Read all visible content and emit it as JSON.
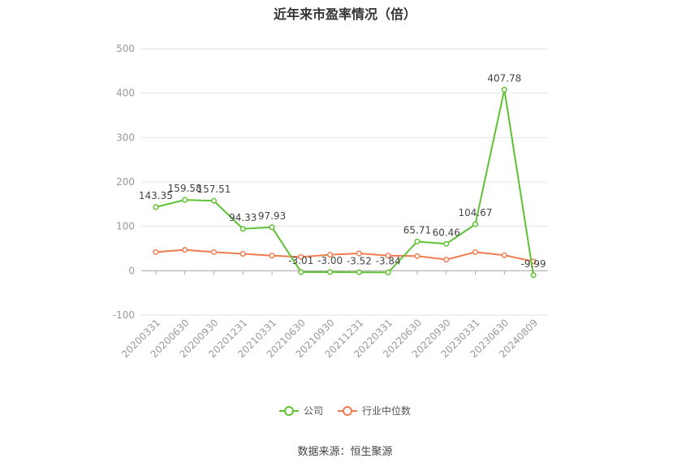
{
  "chart_data": {
    "type": "line",
    "title": "近年来市盈率情况（倍）",
    "categories": [
      "20200331",
      "20200630",
      "20200930",
      "20201231",
      "20210331",
      "20210630",
      "20210930",
      "20211231",
      "20220331",
      "20220630",
      "20220930",
      "20230331",
      "20230630",
      "20240809"
    ],
    "series": [
      {
        "name": "公司",
        "color": "#5ec232",
        "values": [
          143.35,
          159.58,
          157.51,
          94.33,
          97.93,
          -3.01,
          -3.0,
          -3.52,
          -3.84,
          65.71,
          60.46,
          104.67,
          407.78,
          -9.99
        ],
        "labels": [
          "143.35",
          "159.58",
          "157.51",
          "94.33",
          "97.93",
          "-3.01",
          "-3.00",
          "-3.52",
          "-3.84",
          "65.71",
          "60.46",
          "104.67",
          "407.78",
          "-9.99"
        ]
      },
      {
        "name": "行业中位数",
        "color": "#f07c4f",
        "values": [
          42,
          47,
          42,
          38,
          34,
          31,
          36,
          39,
          34,
          33,
          25,
          42,
          35,
          21
        ]
      }
    ],
    "ylim": [
      -100,
      500
    ],
    "yticks": [
      "500",
      "400",
      "300",
      "200",
      "100",
      "0",
      "-100"
    ],
    "grid": true,
    "legend_position": "bottom"
  },
  "source": "数据来源：恒生聚源"
}
